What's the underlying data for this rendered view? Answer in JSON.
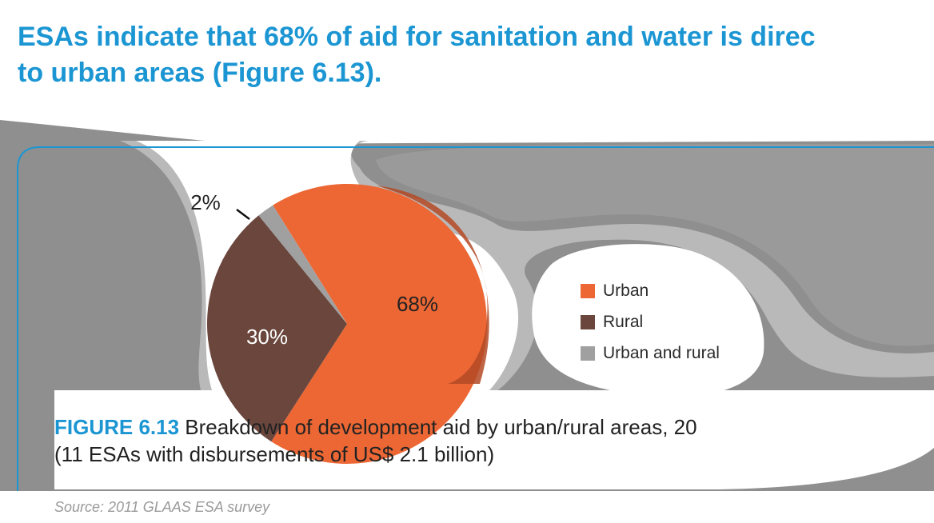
{
  "headline": {
    "line1": "ESAs indicate that 68% of aid for sanitation and water is direc",
    "line2": "to urban areas (Figure 6.13)."
  },
  "chart_data": {
    "type": "pie",
    "slices": [
      {
        "label": "Urban",
        "value": 68,
        "display": "68%",
        "color": "#ec6734"
      },
      {
        "label": "Rural",
        "value": 30,
        "display": "30%",
        "color": "#6a463d"
      },
      {
        "label": "Urban and rural",
        "value": 2,
        "display": "2%",
        "color": "#a0a0a0"
      }
    ],
    "legend_position": "right"
  },
  "figure": {
    "label": "FIGURE 6.13",
    "caption_line1": " Breakdown of development aid by urban/rural areas, 20",
    "caption_line2": "(11 ESAs with disbursements of US$ 2.1 billion)"
  },
  "source": "Source: 2011 GLAAS ESA survey",
  "colors": {
    "accent": "#1b96d3",
    "frame_dark": "#8f8f8f",
    "frame_light": "#b9b9b9"
  }
}
